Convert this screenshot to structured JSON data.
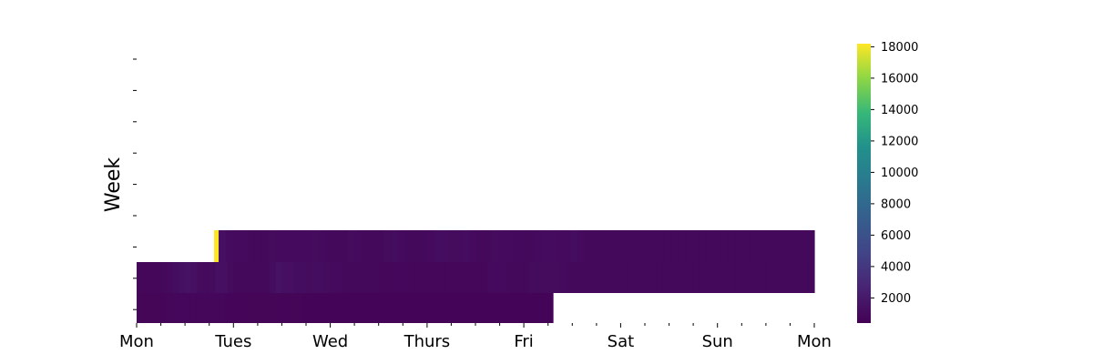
{
  "chart_data": {
    "type": "heatmap",
    "title": "",
    "ylabel": "Week",
    "xlabel": "",
    "x_tick_labels": [
      "Mon",
      "Tues",
      "Wed",
      "Thurs",
      "Fri",
      "Sat",
      "Sun",
      "Mon"
    ],
    "x_range_days": [
      0,
      7
    ],
    "y_rows": 8,
    "colormap": "viridis",
    "colorbar": {
      "min": 400,
      "max": 18200,
      "ticks": [
        2000,
        4000,
        6000,
        8000,
        10000,
        12000,
        14000,
        16000,
        18000
      ],
      "tick_labels": [
        "2000",
        "4000",
        "6000",
        "8000",
        "10000",
        "12000",
        "14000",
        "16000",
        "18000"
      ]
    },
    "rows": [
      {
        "row": 5,
        "start_day": 0.8,
        "values": [
          18200,
          1300,
          1100,
          1000,
          1000,
          950,
          900,
          900,
          1100,
          1000,
          1000,
          1000,
          1000,
          1000,
          1100,
          1000,
          950,
          900,
          900,
          1100,
          1000,
          950,
          900,
          900,
          1100,
          1200,
          1000,
          950,
          900,
          900,
          1000,
          1200,
          1200,
          1100,
          1100,
          1200,
          1000,
          950,
          900,
          1100,
          1000,
          1000,
          950,
          900,
          900,
          1000,
          1100,
          1100,
          1000,
          1000,
          1200,
          1000,
          950,
          950,
          900,
          900,
          900,
          900,
          900,
          900,
          900,
          900,
          900,
          900,
          900,
          900,
          900,
          900,
          900,
          900,
          900,
          900,
          900,
          900,
          900,
          900,
          900,
          900,
          900,
          900,
          900,
          900,
          900,
          900
        ]
      },
      {
        "row": 6,
        "start_day": 0.0,
        "values": [
          800,
          800,
          800,
          800,
          900,
          1000,
          1200,
          1400,
          1500,
          1300,
          1100,
          1000,
          1100,
          1300,
          1300,
          1100,
          900,
          900,
          900,
          900,
          900,
          900,
          1200,
          1500,
          1300,
          1300,
          1200,
          1200,
          1100,
          1200,
          1200,
          1100,
          1000,
          1000,
          900,
          900,
          900,
          900,
          900,
          900,
          800,
          800,
          800,
          800,
          800,
          800,
          800,
          800,
          800,
          800,
          800,
          800,
          800,
          800,
          800,
          800,
          800,
          800,
          1000,
          1000,
          1000,
          900,
          900,
          900,
          900,
          1100,
          1100,
          1100,
          1100,
          1100,
          1000,
          900,
          900,
          900,
          900,
          900,
          900,
          900,
          900,
          900,
          900,
          900,
          900,
          900,
          900,
          900,
          900,
          900,
          900,
          900,
          900,
          900,
          900,
          900,
          900,
          900,
          900,
          900,
          900,
          900,
          900,
          900,
          900,
          900,
          900,
          900,
          900,
          900,
          900,
          900,
          900,
          900
        ]
      },
      {
        "row": 7,
        "start_day": 0.0,
        "values": [
          700,
          700,
          700,
          700,
          750,
          800,
          800,
          800,
          800,
          800,
          800,
          800,
          800,
          800,
          800,
          750,
          750,
          700,
          700,
          700,
          700,
          700,
          700,
          700,
          700,
          700,
          700,
          700,
          650,
          650,
          650,
          650,
          650,
          650,
          650,
          650,
          650,
          650,
          650,
          650,
          650,
          650,
          650,
          650,
          650,
          650,
          650,
          650,
          650,
          650,
          650,
          650,
          650,
          650,
          650,
          650,
          650,
          650,
          650,
          650,
          650,
          650,
          650,
          650,
          650,
          650,
          650,
          650,
          650,
          650
        ]
      }
    ],
    "row_end_days": {
      "5": 7.0,
      "6": 7.0,
      "7": 4.3
    }
  }
}
